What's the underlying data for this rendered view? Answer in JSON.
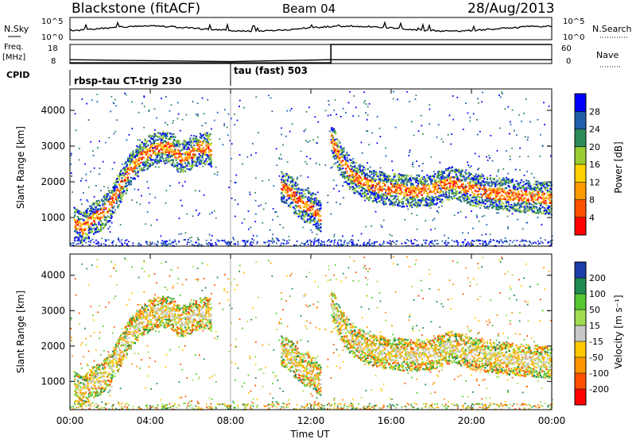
{
  "header": {
    "title": "Blackstone (fitACF)",
    "beam": "Beam 04",
    "date": "28/Aug/2013"
  },
  "top_panels": {
    "nsky": {
      "left_label": "N.Sky",
      "right_label": "N.Search",
      "left_ticks": [
        "10^5",
        "10^0"
      ],
      "right_ticks": [
        "10^5",
        "10^0"
      ]
    },
    "freq": {
      "left_label": "Freq.",
      "left_unit": "[MHz]",
      "right_label": "Nave",
      "left_ticks": [
        "18",
        "8"
      ],
      "right_ticks": [
        "60",
        "0"
      ]
    },
    "cpid": {
      "label": "CPID",
      "segments": [
        {
          "label": "rbsp-tau CT-trig 230",
          "start_hour": 0
        },
        {
          "label": "tau (fast) 503",
          "start_hour": 8
        }
      ]
    }
  },
  "power_colorbar": {
    "label": "Power [dB]",
    "ticks": [
      "28",
      "24",
      "20",
      "16",
      "12",
      "8",
      "4"
    ],
    "colors": [
      "#ff0000",
      "#ff5000",
      "#ff9a00",
      "#ffd200",
      "#9acd32",
      "#2e8b57",
      "#1e5faa",
      "#0000ff"
    ]
  },
  "velocity_colorbar": {
    "label": "Velocity [m s⁻¹]",
    "ticks": [
      "200",
      "100",
      "50",
      "15",
      "-15",
      "-50",
      "-100",
      "-200"
    ],
    "colors": [
      "#1e3caa",
      "#1e8c50",
      "#55c832",
      "#a0dc50",
      "#c8c8c8",
      "#ffc800",
      "#ff9600",
      "#ff5000",
      "#ff0000"
    ]
  },
  "axes": {
    "ylabel": "Slant Range [km]",
    "xlabel": "Time UT",
    "y_ticks": [
      "1000",
      "2000",
      "3000",
      "4000"
    ],
    "x_ticks": [
      "00:00",
      "04:00",
      "08:00",
      "12:00",
      "16:00",
      "20:00",
      "00:00"
    ]
  },
  "chart_data": {
    "type": "heatmap",
    "title": "Blackstone (fitACF)",
    "xlabel": "Time UT",
    "ylabel": "Slant Range [km]",
    "xlim": [
      0,
      24
    ],
    "ylim": [
      200,
      4600
    ],
    "x_ticks_hours": [
      0,
      4,
      8,
      12,
      16,
      20,
      24
    ],
    "y_ticks_km": [
      1000,
      2000,
      3000,
      4000
    ],
    "power_scatter_bands": [
      {
        "points": [
          [
            0.2,
            900
          ],
          [
            0.6,
            700
          ],
          [
            1.0,
            950
          ],
          [
            1.5,
            1100
          ],
          [
            2.0,
            1400
          ],
          [
            2.5,
            1900
          ],
          [
            3.0,
            2400
          ],
          [
            3.5,
            2700
          ],
          [
            4.0,
            2900
          ],
          [
            4.5,
            3000
          ],
          [
            5.0,
            2950
          ],
          [
            5.5,
            2700
          ],
          [
            6.0,
            2800
          ],
          [
            6.5,
            3000
          ],
          [
            7.0,
            2900
          ]
        ],
        "power_db": 24
      },
      {
        "points": [
          [
            10.5,
            1900
          ],
          [
            11.0,
            1700
          ],
          [
            11.5,
            1400
          ],
          [
            12.0,
            1300
          ],
          [
            12.5,
            1000
          ]
        ],
        "power_db": 22
      },
      {
        "points": [
          [
            13.0,
            3200
          ],
          [
            13.5,
            2600
          ],
          [
            14.0,
            2200
          ],
          [
            15.0,
            1900
          ],
          [
            16.0,
            1800
          ],
          [
            17.0,
            1750
          ],
          [
            18.0,
            1800
          ],
          [
            19.0,
            2000
          ],
          [
            20.0,
            1800
          ],
          [
            21.0,
            1700
          ],
          [
            22.0,
            1650
          ],
          [
            23.0,
            1600
          ],
          [
            24.0,
            1550
          ]
        ],
        "power_db": 20
      }
    ],
    "freq_mhz": [
      [
        0,
        10
      ],
      [
        8,
        9
      ],
      [
        13,
        10
      ],
      [
        24,
        10
      ]
    ],
    "nave": [
      [
        0,
        2
      ],
      [
        13,
        60
      ],
      [
        24,
        60
      ]
    ]
  }
}
